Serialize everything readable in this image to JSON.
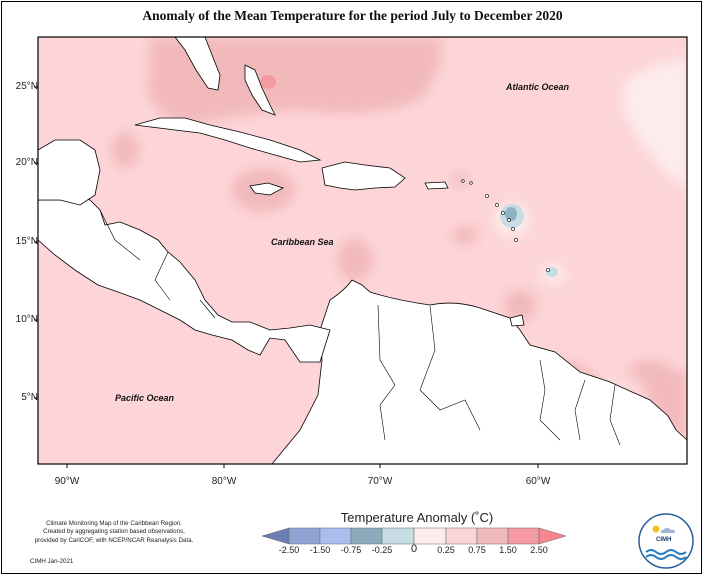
{
  "title": "Anomaly of the Mean Temperature for the period July to December 2020",
  "map": {
    "lat_labels": [
      "25°N",
      "20°N",
      "15°N",
      "10°N",
      "5°N"
    ],
    "lon_labels": [
      "90°W",
      "80°W",
      "70°W",
      "60°W"
    ],
    "places": {
      "atlantic": "Atlantic Ocean",
      "caribbean": "Caribbean Sea",
      "pacific": "Pacific Ocean"
    },
    "colors": {
      "background_anomaly": "#fdd5d8",
      "warm_patch": "#f2b9bb",
      "warm_strong": "#f59aa0",
      "near_zero": "#fdeced",
      "near_zero_cool": "#c6dde3",
      "cool_patch": "#8fb1c4",
      "land": "#ffffff",
      "border": "#000000"
    }
  },
  "legend": {
    "title": "Temperature Anomaly (˚C)",
    "ticks": [
      "-2.50",
      "-1.50",
      "-0.75",
      "-0.25",
      "0",
      "0.25",
      "0.75",
      "1.50",
      "2.50"
    ],
    "bins": [
      {
        "range": "< -2.50",
        "color": "#6b7fb0"
      },
      {
        "range": "-2.50 to -1.50",
        "color": "#8fa3d4"
      },
      {
        "range": "-1.50 to -0.75",
        "color": "#a9bdf0"
      },
      {
        "range": "-0.75 to -0.25",
        "color": "#8cabbd"
      },
      {
        "range": "-0.25 to 0",
        "color": "#c6dde3"
      },
      {
        "range": "0 to 0.25",
        "color": "#fdeced"
      },
      {
        "range": "0.25 to 0.75",
        "color": "#fdd5d8"
      },
      {
        "range": "0.75 to 1.50",
        "color": "#f2b9bb"
      },
      {
        "range": "1.50 to 2.50",
        "color": "#f59aa0"
      },
      {
        "range": "> 2.50",
        "color": "#f7868d"
      }
    ]
  },
  "footer": {
    "credit_line1": "Climate Monitoring Map of the Caribbean Region.",
    "credit_line2": "Created by aggregating station based observations,",
    "credit_line3": "provided by CariCOF, with NCEP/NCAR Reanalysis Data.",
    "signature": "CIMH  Jan-2021",
    "logo_text": "CIMH"
  }
}
